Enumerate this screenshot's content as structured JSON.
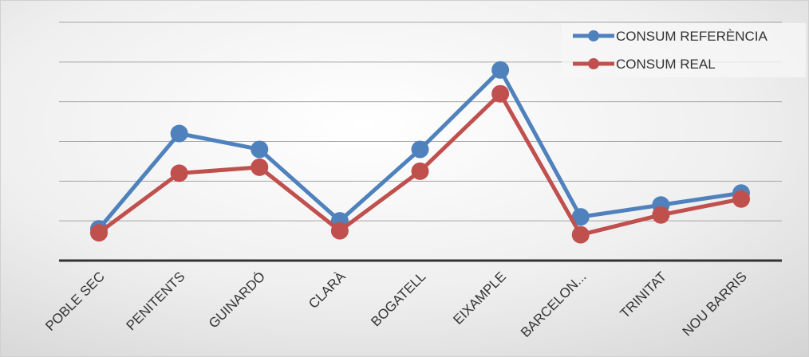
{
  "chart_data": {
    "type": "line",
    "categories": [
      "POBLE SEC",
      "PENITENTS",
      "GUINARDÓ",
      "CLARÀ",
      "BOGATELL",
      "EIXAMPLE",
      "BARCELON...",
      "TRINITAT",
      "NOU BARRIS"
    ],
    "series": [
      {
        "name": "CONSUM REFERÈNCIA",
        "color": "#4F81BD",
        "values": [
          0.8,
          3.2,
          2.8,
          1.0,
          2.8,
          4.8,
          1.1,
          1.4,
          1.7
        ]
      },
      {
        "name": "CONSUM REAL",
        "color": "#C0504D",
        "values": [
          0.7,
          2.2,
          2.35,
          0.75,
          2.25,
          4.2,
          0.65,
          1.15,
          1.55
        ]
      }
    ],
    "ylim": [
      0,
      6
    ],
    "grid": true,
    "y_tick_labels_shown": false,
    "legend_position": "top-right",
    "background": "#E8E8E8",
    "axis_color": "#333333",
    "grid_color": "#A6A6A6"
  }
}
